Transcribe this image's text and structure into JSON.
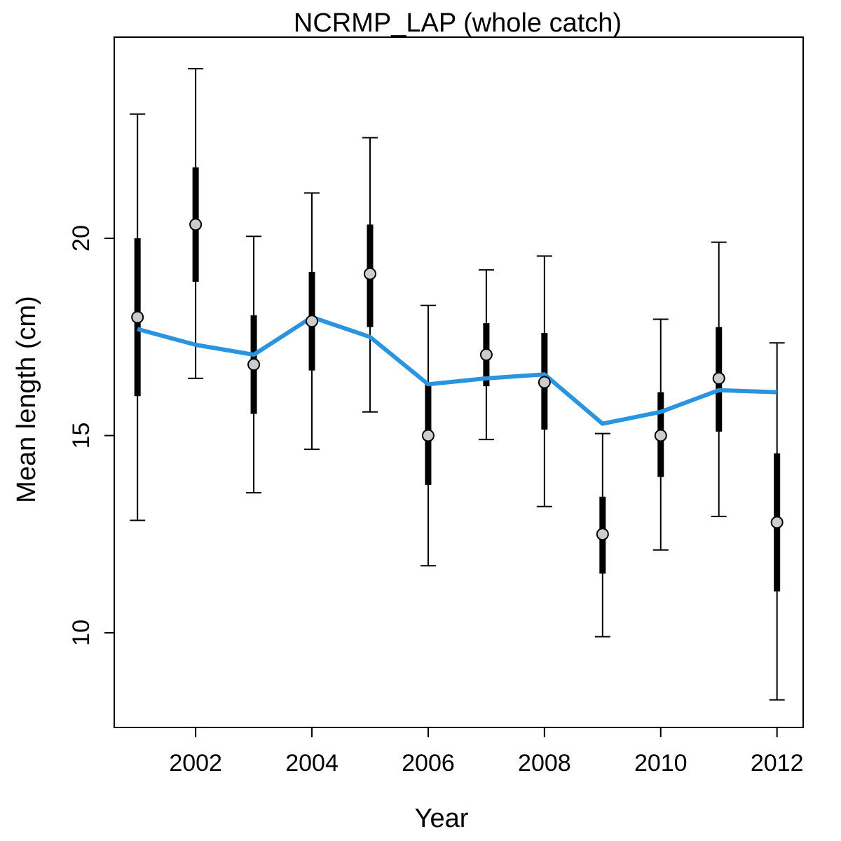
{
  "chart_data": {
    "type": "line",
    "title": "NCRMP_LAP (whole catch)",
    "xlabel": "Year",
    "ylabel": "Mean length (cm)",
    "xlim": [
      2000.6,
      2012.45
    ],
    "ylim": [
      7.6,
      25.1
    ],
    "x_ticks": [
      2002,
      2004,
      2006,
      2008,
      2010,
      2012
    ],
    "x_tick_labels": [
      "2002",
      "2004",
      "2006",
      "2008",
      "2010",
      "2012"
    ],
    "y_ticks": [
      10,
      15,
      20
    ],
    "y_tick_labels": [
      "10",
      "15",
      "20"
    ],
    "grid": false,
    "legend": "none",
    "colors": {
      "fit_line": "#2b94df",
      "point_fill": "#cccccc",
      "bars": "#000000"
    },
    "years": [
      2001,
      2002,
      2003,
      2004,
      2005,
      2006,
      2007,
      2008,
      2009,
      2010,
      2011,
      2012
    ],
    "observed_mean": [
      18.0,
      20.35,
      16.8,
      17.9,
      19.1,
      15.0,
      17.05,
      16.35,
      12.5,
      15.0,
      16.45,
      12.8
    ],
    "inner_interval_low": [
      16.0,
      18.9,
      15.55,
      16.65,
      17.75,
      13.75,
      16.25,
      15.15,
      11.5,
      13.95,
      15.1,
      11.05
    ],
    "inner_interval_high": [
      20.0,
      21.8,
      18.05,
      19.15,
      20.35,
      16.35,
      17.85,
      17.6,
      13.45,
      16.1,
      17.75,
      14.55
    ],
    "outer_interval_low": [
      12.85,
      16.45,
      13.55,
      14.65,
      15.6,
      11.7,
      14.9,
      13.2,
      9.9,
      12.1,
      12.95,
      8.3
    ],
    "outer_interval_high": [
      23.15,
      24.3,
      20.05,
      21.15,
      22.55,
      18.3,
      19.2,
      19.55,
      15.05,
      17.95,
      19.9,
      17.35
    ],
    "expected_mean": [
      17.7,
      17.3,
      17.05,
      18.0,
      17.5,
      16.3,
      16.45,
      16.55,
      15.3,
      15.6,
      16.15,
      16.1
    ]
  }
}
